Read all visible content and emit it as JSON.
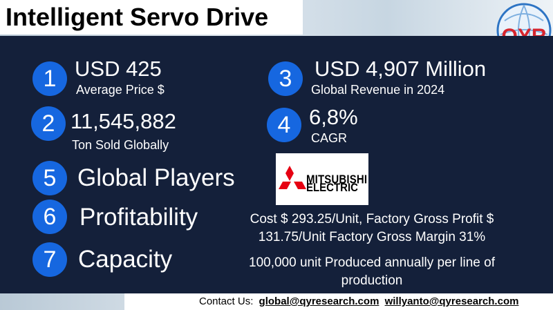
{
  "header": {
    "title": "Intelligent Servo Drive",
    "logo": "QYR"
  },
  "metrics": [
    {
      "number": "1",
      "value": "USD 425",
      "label": "Average Price $"
    },
    {
      "number": "2",
      "value": "11,545,882",
      "label": "Ton Sold Globally"
    },
    {
      "number": "3",
      "value": "USD 4,907 Million",
      "label": "Global Revenue in 2024"
    },
    {
      "number": "4",
      "value": "6,8%",
      "label": "CAGR"
    }
  ],
  "sections": [
    {
      "number": "5",
      "heading": "Global Players",
      "logo": [
        "MITSUBISHI",
        "ELECTRIC"
      ]
    },
    {
      "number": "6",
      "heading": "Profitability",
      "detail": [
        "Cost $ 293.25/Unit, Factory Gross Profit $",
        "131.75/Unit Factory Gross Margin 31%"
      ]
    },
    {
      "number": "7",
      "heading": "Capacity",
      "detail": [
        "100,000  unit Produced annually per line of",
        "production"
      ]
    }
  ],
  "contact": {
    "label": "Contact Us:",
    "emails": [
      "global@qyresearch.com",
      "willyanto@qyresearch.com"
    ]
  }
}
